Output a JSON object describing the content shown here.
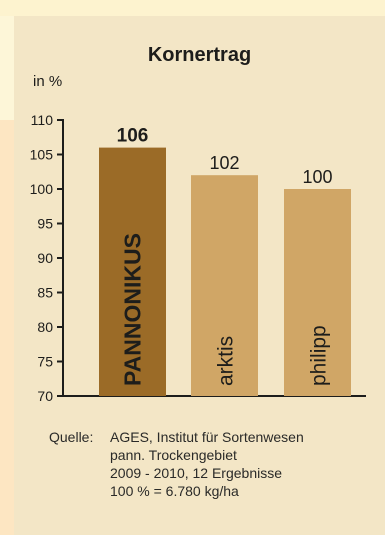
{
  "chart_data": {
    "type": "bar",
    "title": "Kornertrag",
    "ylabel": "in %",
    "ylim": [
      70,
      110
    ],
    "yticks": [
      70,
      75,
      80,
      85,
      90,
      95,
      100,
      105,
      110
    ],
    "categories": [
      "PANNONIKUS",
      "arktis",
      "philipp"
    ],
    "values": [
      106,
      102,
      100
    ],
    "value_labels": [
      "106",
      "102",
      "100"
    ],
    "colors": [
      "#9b6b27",
      "#d0a666",
      "#d0a666"
    ],
    "highlight_index": 0,
    "grid": false
  },
  "source": {
    "label": "Quelle:",
    "lines": [
      "AGES, Institut für Sortenwesen",
      "pann. Trockengebiet",
      "2009 - 2010, 12 Ergebnisse",
      "100 % = 6.780 kg/ha"
    ]
  }
}
